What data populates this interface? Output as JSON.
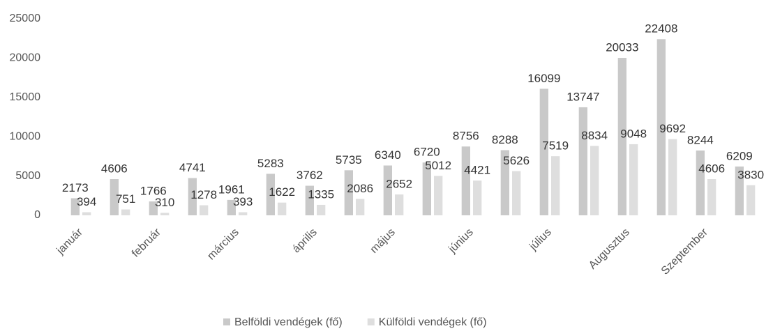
{
  "chart_data": {
    "type": "bar",
    "categories": [
      "január",
      null,
      "február",
      null,
      "március",
      null,
      "április",
      null,
      "május",
      null,
      "június",
      null,
      "július",
      null,
      "Augusztus",
      null,
      "Szeptember",
      null
    ],
    "series": [
      {
        "name": "Belföldi vendégek (fő)",
        "color": "#c9c9c9",
        "values": [
          2173,
          4606,
          1766,
          4741,
          1961,
          5283,
          3762,
          5735,
          6340,
          6720,
          8756,
          8288,
          16099,
          13747,
          20033,
          22408,
          8244,
          6209
        ]
      },
      {
        "name": "Külföldi vendégek (fő)",
        "color": "#dedede",
        "values": [
          394,
          751,
          310,
          1278,
          393,
          1622,
          1335,
          2086,
          2652,
          5012,
          4421,
          5626,
          7519,
          8834,
          9048,
          9692,
          4606,
          3830
        ]
      }
    ],
    "ylim": [
      0,
      25000
    ],
    "yticks": [
      0,
      5000,
      10000,
      15000,
      20000,
      25000
    ],
    "grid": false,
    "legend": "bottom"
  }
}
